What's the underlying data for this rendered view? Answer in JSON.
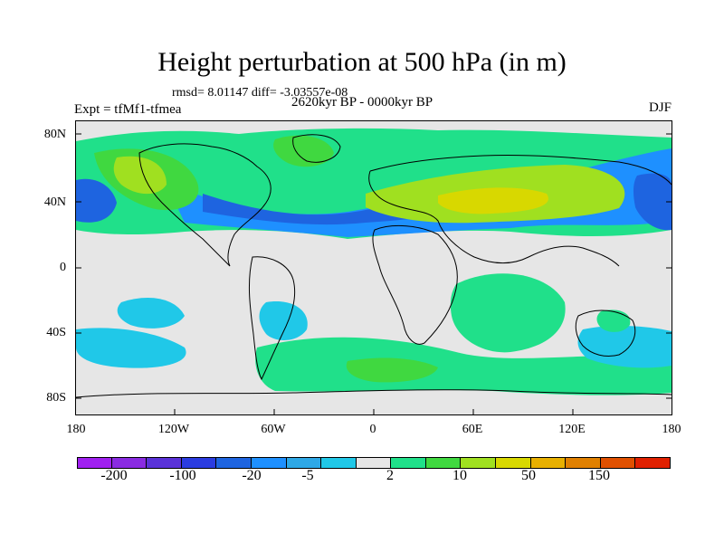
{
  "title": "Height perturbation at 500 hPa (in m)",
  "stats": "rmsd= 8.01147 diff= -3.03557e-08",
  "period": "2620kyr BP - 0000kyr BP",
  "experiment": "Expt = tfMf1-tfmea",
  "season": "DJF",
  "map": {
    "lat_labels": [
      "80N",
      "40N",
      "0",
      "40S",
      "80S"
    ],
    "lon_labels": [
      "180",
      "120W",
      "60W",
      "0",
      "60E",
      "120E",
      "180"
    ]
  },
  "labelbar": {
    "labels": [
      "-200",
      "-100",
      "-20",
      "-5",
      "2",
      "10",
      "50",
      "150"
    ],
    "colors": [
      "#a020f0",
      "#8a2be2",
      "#5a32d8",
      "#2b3ce0",
      "#1e64e0",
      "#1e90ff",
      "#2ea8e6",
      "#20c8e8",
      "#e6e6e6",
      "#20e08a",
      "#40d840",
      "#a0e020",
      "#d8d800",
      "#e8b000",
      "#e08000",
      "#e05000",
      "#e02000"
    ]
  },
  "colors": {
    "deep_blue": "#1e64e0",
    "blue": "#1e90ff",
    "light_blue": "#20b8e8",
    "neutral": "#e6e6e6",
    "teal": "#20e08a",
    "green": "#40d840",
    "yellow_green": "#a0e020",
    "yellow": "#d8d800",
    "orange": "#e8b000"
  }
}
